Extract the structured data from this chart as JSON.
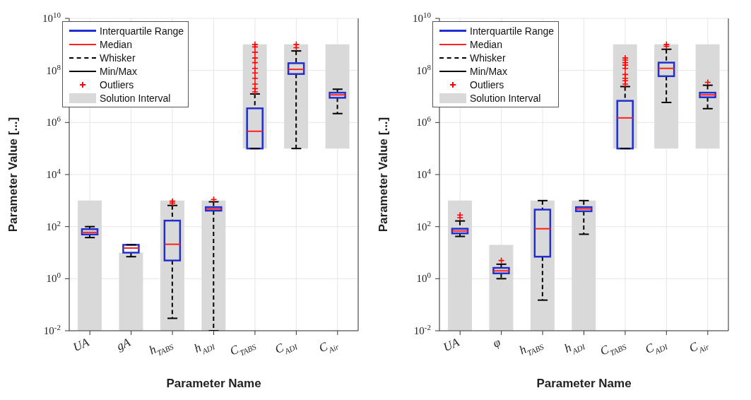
{
  "chart_data": [
    {
      "type": "box",
      "xlabel": "Parameter Name",
      "ylabel": "Parameter Value [...]",
      "categories": [
        "UA",
        "gA",
        "h$_{TABS}$",
        "h$_{ADI}$",
        "C$_{TABS}$",
        "C$_{ADI}$",
        "C$_{Air}$"
      ],
      "log": true,
      "ylim": [
        0.01,
        10000000000
      ],
      "yticks": [
        {
          "value": 0.01,
          "label": "10$^{-2}$"
        },
        {
          "value": 1,
          "label": "10$^{0}$"
        },
        {
          "value": 100,
          "label": "10$^{2}$"
        },
        {
          "value": 10000,
          "label": "10$^{4}$"
        },
        {
          "value": 1000000,
          "label": "10$^{6}$"
        },
        {
          "value": 100000000,
          "label": "10$^{8}$"
        },
        {
          "value": 10000000000,
          "label": "10$^{10}$"
        }
      ],
      "grid": true,
      "legend": "top left",
      "series": [
        {
          "type": "box",
          "name": "Interquartile Range",
          "color": "#1f2fd0",
          "boxes": [
            {
              "low": 38,
              "q1": 50,
              "median": 60,
              "q3": 80,
              "high": 100
            },
            {
              "low": 7,
              "q1": 10,
              "median": 15,
              "q3": 20,
              "high": 20
            },
            {
              "low": 0.03,
              "q1": 5,
              "median": 21,
              "q3": 170,
              "high": 650,
              "outliers": [
                800,
                950
              ]
            },
            {
              "low": 0.01,
              "q1": 410,
              "median": 480,
              "q3": 560,
              "high": 900,
              "outliers": [
                1100
              ]
            },
            {
              "low": 100000,
              "q1": 100000,
              "median": 460000,
              "q3": 3500000,
              "high": 12500000,
              "outliers": [
                15000000,
                20000000,
                30000000,
                50000000,
                80000000,
                120000000,
                200000000,
                300000000,
                500000000,
                800000000,
                1000000000
              ]
            },
            {
              "low": 100000,
              "q1": 73000000,
              "median": 110000000,
              "q3": 190000000,
              "high": 560000000,
              "outliers": [
                750000000,
                1000000000
              ]
            },
            {
              "low": 2200000,
              "q1": 8900000,
              "median": 11500000,
              "q3": 14000000,
              "high": 19000000
            }
          ]
        },
        {
          "type": "bar",
          "name": "Solution Interval",
          "color": "#d9d9d9",
          "base": [
            0.01,
            0.01,
            0.01,
            0.01,
            100000,
            100000,
            100000
          ],
          "values": [
            999.99,
            9.99,
            999.99,
            999.99,
            999900000,
            999900000,
            999900000
          ]
        }
      ],
      "annotations": [
        "Median",
        "Whisker",
        "Min/Max",
        "Outliers"
      ]
    },
    {
      "type": "box",
      "xlabel": "Parameter Name",
      "ylabel": "Parameter Value [...]",
      "categories": [
        "UA",
        "φ",
        "h$_{TABS}$",
        "h$_{ADI}$",
        "C$_{TABS}$",
        "C$_{ADI}$",
        "C$_{Air}$"
      ],
      "log": true,
      "ylim": [
        0.01,
        10000000000
      ],
      "yticks": [
        {
          "value": 0.01,
          "label": "10$^{-2}$"
        },
        {
          "value": 1,
          "label": "10$^{0}$"
        },
        {
          "value": 100,
          "label": "10$^{2}$"
        },
        {
          "value": 10000,
          "label": "10$^{4}$"
        },
        {
          "value": 1000000,
          "label": "10$^{6}$"
        },
        {
          "value": 100000000,
          "label": "10$^{8}$"
        },
        {
          "value": 10000000000,
          "label": "10$^{10}$"
        }
      ],
      "grid": true,
      "legend": "top left",
      "series": [
        {
          "type": "box",
          "name": "Interquartile Range",
          "color": "#1f2fd0",
          "boxes": [
            {
              "low": 42,
              "q1": 55,
              "median": 68,
              "q3": 83,
              "high": 165,
              "outliers": [
                220,
                280
              ]
            },
            {
              "low": 1,
              "q1": 1.6,
              "median": 2,
              "q3": 2.6,
              "high": 3.6,
              "outliers": [
                5
              ]
            },
            {
              "low": 0.15,
              "q1": 7,
              "median": 83,
              "q3": 450,
              "high": 1000
            },
            {
              "low": 51,
              "q1": 390,
              "median": 480,
              "q3": 560,
              "high": 1000
            },
            {
              "low": 100000,
              "q1": 100000,
              "median": 1500000,
              "q3": 6800000,
              "high": 24000000,
              "outliers": [
                30000000,
                40000000,
                50000000,
                70000000,
                120000000,
                160000000,
                200000000,
                250000000,
                300000000
              ]
            },
            {
              "low": 5900000,
              "q1": 60000000,
              "median": 120000000,
              "q3": 200000000,
              "high": 650000000,
              "outliers": [
                850000000,
                1000000000
              ]
            },
            {
              "low": 3400000,
              "q1": 9300000,
              "median": 11500000,
              "q3": 14000000,
              "high": 27000000,
              "outliers": [
                35000000
              ]
            }
          ]
        },
        {
          "type": "bar",
          "name": "Solution Interval",
          "color": "#d9d9d9",
          "base": [
            0.01,
            0.01,
            0.01,
            0.01,
            100000,
            100000,
            100000
          ],
          "values": [
            999.99,
            19.99,
            999.99,
            999.99,
            999900000,
            999900000,
            999900000
          ]
        }
      ],
      "annotations": [
        "Median",
        "Whisker",
        "Min/Max",
        "Outliers"
      ]
    }
  ]
}
